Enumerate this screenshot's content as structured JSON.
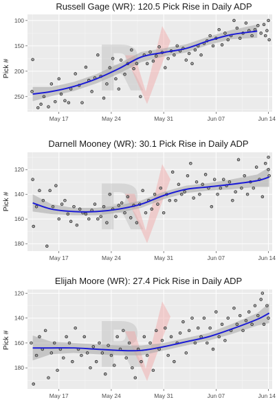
{
  "chart_data": [
    {
      "type": "scatter",
      "title": "Russell Gage (WR): 120.5 Pick Rise in Daily ADP",
      "ylabel": "Pick #",
      "xlabel": "",
      "x_tick_labels": [
        "May 17",
        "May 24",
        "May 31",
        "Jun 07",
        "Jun 14"
      ],
      "x_tick_days": [
        17,
        24,
        31,
        38,
        45
      ],
      "x_range_days": [
        12.8,
        45.5
      ],
      "y_reversed": true,
      "ylim": [
        280,
        88
      ],
      "y_ticks": [
        100,
        150,
        200,
        250
      ],
      "grid": true,
      "smooth": {
        "x": [
          13.5,
          16,
          19,
          22,
          25,
          28,
          31,
          34,
          37,
          40,
          43.5
        ],
        "y": [
          245,
          240,
          230,
          215,
          195,
          172,
          163,
          155,
          140,
          128,
          121
        ]
      },
      "band": {
        "lower_offset": [
          14,
          9,
          9,
          9,
          10,
          10,
          8,
          8,
          8,
          9,
          13
        ],
        "upper_offset": [
          14,
          9,
          9,
          9,
          10,
          10,
          8,
          8,
          8,
          9,
          13
        ]
      },
      "points": [
        [
          13.4,
          240
        ],
        [
          13.5,
          177
        ],
        [
          14.2,
          272
        ],
        [
          14.6,
          265
        ],
        [
          15.0,
          250
        ],
        [
          15.6,
          270
        ],
        [
          16.0,
          225
        ],
        [
          16.5,
          260
        ],
        [
          17.0,
          215
        ],
        [
          17.3,
          245
        ],
        [
          17.8,
          258
        ],
        [
          18.3,
          262
        ],
        [
          18.6,
          235
        ],
        [
          19.2,
          205
        ],
        [
          19.7,
          228
        ],
        [
          20.1,
          262
        ],
        [
          20.6,
          192
        ],
        [
          21.0,
          218
        ],
        [
          21.4,
          240
        ],
        [
          21.8,
          213
        ],
        [
          22.2,
          168
        ],
        [
          22.6,
          210
        ],
        [
          23.0,
          253
        ],
        [
          23.4,
          225
        ],
        [
          23.8,
          193
        ],
        [
          24.2,
          175
        ],
        [
          24.6,
          215
        ],
        [
          25.0,
          235
        ],
        [
          25.3,
          178
        ],
        [
          25.8,
          206
        ],
        [
          26.2,
          185
        ],
        [
          26.7,
          158
        ],
        [
          27.0,
          195
        ],
        [
          27.4,
          185
        ],
        [
          27.9,
          250
        ],
        [
          28.4,
          168
        ],
        [
          28.8,
          185
        ],
        [
          29.2,
          162
        ],
        [
          29.6,
          180
        ],
        [
          30.0,
          170
        ],
        [
          30.4,
          152
        ],
        [
          30.8,
          163
        ],
        [
          31.2,
          193
        ],
        [
          31.6,
          175
        ],
        [
          32.0,
          160
        ],
        [
          32.4,
          168
        ],
        [
          32.8,
          150
        ],
        [
          33.2,
          160
        ],
        [
          33.6,
          155
        ],
        [
          34.0,
          178
        ],
        [
          34.4,
          165
        ],
        [
          34.8,
          185
        ],
        [
          35.2,
          158
        ],
        [
          35.6,
          150
        ],
        [
          36.0,
          168
        ],
        [
          36.4,
          145
        ],
        [
          36.8,
          140
        ],
        [
          37.2,
          130
        ],
        [
          37.6,
          150
        ],
        [
          38.0,
          135
        ],
        [
          38.4,
          118
        ],
        [
          38.8,
          148
        ],
        [
          39.2,
          125
        ],
        [
          39.6,
          138
        ],
        [
          40.0,
          130
        ],
        [
          40.4,
          100
        ],
        [
          40.8,
          115
        ],
        [
          41.2,
          135
        ],
        [
          41.6,
          125
        ],
        [
          42.0,
          105
        ],
        [
          42.4,
          120
        ],
        [
          42.8,
          130
        ],
        [
          43.2,
          118
        ],
        [
          43.6,
          110
        ],
        [
          44.0,
          125
        ],
        [
          44.4,
          108
        ],
        [
          44.8,
          120
        ],
        [
          45.0,
          100
        ],
        [
          45.1,
          138
        ],
        [
          44.6,
          130
        ]
      ]
    },
    {
      "type": "scatter",
      "title": "Darnell Mooney (WR): 30.1 Pick Rise in Daily ADP",
      "ylabel": "Pick #",
      "xlabel": "",
      "x_tick_labels": [
        "May 17",
        "May 24",
        "May 31",
        "Jun 07",
        "Jun 14"
      ],
      "x_tick_days": [
        17,
        24,
        31,
        38,
        45
      ],
      "x_range_days": [
        12.8,
        45.5
      ],
      "y_reversed": true,
      "ylim": [
        186,
        106
      ],
      "y_ticks": [
        120,
        140,
        160,
        180
      ],
      "grid": true,
      "smooth": {
        "x": [
          13.5,
          16,
          19,
          22,
          25,
          28,
          31,
          34,
          37,
          40,
          43.5,
          45.1
        ],
        "y": [
          147,
          152,
          154,
          154,
          152,
          148,
          141,
          136,
          134,
          132,
          129,
          126
        ]
      },
      "band": {
        "lower_offset": [
          7,
          4,
          3,
          3,
          3,
          3,
          3,
          3,
          3,
          4,
          5,
          8
        ],
        "upper_offset": [
          7,
          4,
          3,
          3,
          3,
          3,
          3,
          3,
          3,
          4,
          5,
          8
        ]
      },
      "points": [
        [
          13.5,
          128
        ],
        [
          13.6,
          166
        ],
        [
          14.0,
          150
        ],
        [
          14.4,
          137
        ],
        [
          14.9,
          145
        ],
        [
          15.4,
          182
        ],
        [
          15.8,
          137
        ],
        [
          16.2,
          150
        ],
        [
          16.6,
          133
        ],
        [
          17.0,
          160
        ],
        [
          17.4,
          148
        ],
        [
          17.8,
          145
        ],
        [
          18.2,
          156
        ],
        [
          18.6,
          162
        ],
        [
          19.0,
          150
        ],
        [
          19.4,
          165
        ],
        [
          19.8,
          152
        ],
        [
          20.2,
          155
        ],
        [
          20.6,
          156
        ],
        [
          21.0,
          160
        ],
        [
          21.4,
          153
        ],
        [
          21.8,
          148
        ],
        [
          22.2,
          160
        ],
        [
          22.6,
          158
        ],
        [
          23.0,
          150
        ],
        [
          23.4,
          163
        ],
        [
          23.8,
          140
        ],
        [
          24.2,
          152
        ],
        [
          24.6,
          158
        ],
        [
          25.0,
          149
        ],
        [
          25.4,
          147
        ],
        [
          25.8,
          155
        ],
        [
          26.2,
          142
        ],
        [
          26.6,
          159
        ],
        [
          27.0,
          149
        ],
        [
          27.4,
          163
        ],
        [
          27.8,
          148
        ],
        [
          28.2,
          137
        ],
        [
          28.6,
          155
        ],
        [
          29.0,
          145
        ],
        [
          29.4,
          152
        ],
        [
          29.8,
          140
        ],
        [
          30.2,
          148
        ],
        [
          30.6,
          135
        ],
        [
          31.0,
          155
        ],
        [
          31.4,
          140
        ],
        [
          31.8,
          145
        ],
        [
          32.2,
          122
        ],
        [
          32.6,
          145
        ],
        [
          33.0,
          132
        ],
        [
          33.4,
          140
        ],
        [
          33.8,
          138
        ],
        [
          34.2,
          125
        ],
        [
          34.6,
          115
        ],
        [
          35.0,
          143
        ],
        [
          35.4,
          130
        ],
        [
          35.8,
          140
        ],
        [
          36.2,
          132
        ],
        [
          36.6,
          124
        ],
        [
          37.0,
          135
        ],
        [
          37.4,
          150
        ],
        [
          37.8,
          128
        ],
        [
          38.2,
          140
        ],
        [
          38.6,
          135
        ],
        [
          39.0,
          128
        ],
        [
          39.4,
          133
        ],
        [
          39.8,
          130
        ],
        [
          40.2,
          145
        ],
        [
          40.6,
          138
        ],
        [
          41.0,
          112
        ],
        [
          41.4,
          135
        ],
        [
          41.8,
          125
        ],
        [
          42.2,
          140
        ],
        [
          42.6,
          130
        ],
        [
          43.0,
          135
        ],
        [
          43.4,
          118
        ],
        [
          43.8,
          128
        ],
        [
          44.2,
          142
        ],
        [
          44.6,
          115
        ],
        [
          45.0,
          110
        ],
        [
          45.0,
          120
        ],
        [
          45.1,
          125
        ]
      ]
    },
    {
      "type": "scatter",
      "title": "Elijah Moore (WR): 27.4 Pick Rise in Daily ADP",
      "ylabel": "Pick #",
      "xlabel": "",
      "x_tick_labels": [
        "May 17",
        "May 24",
        "May 31",
        "Jun 07",
        "Jun 14"
      ],
      "x_tick_days": [
        17,
        24,
        31,
        38,
        45
      ],
      "x_range_days": [
        12.8,
        45.5
      ],
      "y_reversed": true,
      "ylim": [
        197,
        117
      ],
      "y_ticks": [
        120,
        140,
        160,
        180
      ],
      "grid": true,
      "smooth": {
        "x": [
          13.5,
          16,
          19,
          22,
          25,
          28,
          31,
          34,
          37,
          40,
          43.5,
          45.1
        ],
        "y": [
          164,
          164,
          164,
          165,
          166,
          166,
          163,
          159,
          155,
          149,
          141,
          136
        ]
      },
      "band": {
        "lower_offset": [
          10,
          5,
          4,
          4,
          4,
          4,
          3,
          3,
          3,
          4,
          5,
          8
        ],
        "upper_offset": [
          10,
          5,
          4,
          4,
          4,
          4,
          3,
          3,
          3,
          4,
          5,
          8
        ]
      },
      "points": [
        [
          13.3,
          160
        ],
        [
          13.6,
          193
        ],
        [
          14.0,
          170
        ],
        [
          14.4,
          155
        ],
        [
          14.8,
          165
        ],
        [
          15.2,
          150
        ],
        [
          15.6,
          188
        ],
        [
          16.0,
          168
        ],
        [
          16.4,
          160
        ],
        [
          16.8,
          182
        ],
        [
          17.2,
          165
        ],
        [
          17.6,
          172
        ],
        [
          18.0,
          155
        ],
        [
          18.4,
          160
        ],
        [
          18.8,
          175
        ],
        [
          19.2,
          148
        ],
        [
          19.6,
          165
        ],
        [
          20.0,
          170
        ],
        [
          20.4,
          155
        ],
        [
          20.8,
          168
        ],
        [
          21.2,
          180
        ],
        [
          21.6,
          163
        ],
        [
          22.0,
          175
        ],
        [
          22.4,
          160
        ],
        [
          22.8,
          168
        ],
        [
          23.2,
          185
        ],
        [
          23.6,
          162
        ],
        [
          24.0,
          170
        ],
        [
          24.4,
          178
        ],
        [
          24.8,
          155
        ],
        [
          25.2,
          165
        ],
        [
          25.6,
          150
        ],
        [
          26.0,
          172
        ],
        [
          26.4,
          160
        ],
        [
          26.8,
          180
        ],
        [
          27.2,
          188
        ],
        [
          27.6,
          165
        ],
        [
          28.0,
          175
        ],
        [
          28.4,
          155
        ],
        [
          28.8,
          170
        ],
        [
          29.2,
          160
        ],
        [
          29.6,
          182
        ],
        [
          30.0,
          150
        ],
        [
          30.4,
          165
        ],
        [
          30.8,
          158
        ],
        [
          31.2,
          148
        ],
        [
          31.6,
          170
        ],
        [
          32.0,
          155
        ],
        [
          32.4,
          175
        ],
        [
          32.8,
          160
        ],
        [
          33.2,
          152
        ],
        [
          33.6,
          143
        ],
        [
          34.0,
          168
        ],
        [
          34.4,
          150
        ],
        [
          34.8,
          140
        ],
        [
          35.2,
          160
        ],
        [
          35.6,
          148
        ],
        [
          36.0,
          155
        ],
        [
          36.4,
          140
        ],
        [
          36.8,
          160
        ],
        [
          37.2,
          148
        ],
        [
          37.6,
          165
        ],
        [
          38.0,
          135
        ],
        [
          38.4,
          155
        ],
        [
          38.8,
          145
        ],
        [
          39.2,
          158
        ],
        [
          39.6,
          140
        ],
        [
          40.0,
          150
        ],
        [
          40.4,
          132
        ],
        [
          40.8,
          145
        ],
        [
          41.2,
          138
        ],
        [
          41.6,
          150
        ],
        [
          42.0,
          142
        ],
        [
          42.4,
          135
        ],
        [
          42.8,
          145
        ],
        [
          43.2,
          130
        ],
        [
          43.6,
          138
        ],
        [
          44.0,
          125
        ],
        [
          44.4,
          145
        ],
        [
          44.8,
          130
        ],
        [
          45.0,
          140
        ],
        [
          44.2,
          120
        ]
      ]
    }
  ],
  "colors": {
    "panel_background": "#ebebeb",
    "grid": "#ffffff",
    "points": "#8c8c8c",
    "smooth_line": "#1a1ad6",
    "confidence_band": "#a6a6a6",
    "watermark_r": "#bdbdbd",
    "watermark_v": "#f2a5a5"
  }
}
